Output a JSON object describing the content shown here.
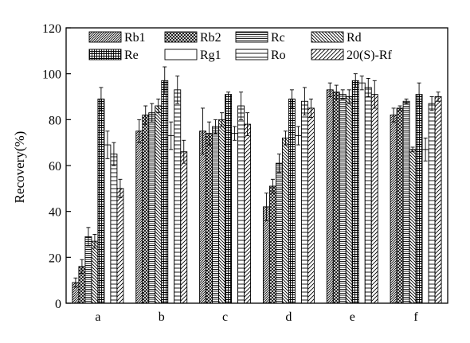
{
  "chart_data": {
    "type": "bar",
    "title": "",
    "xlabel": "",
    "ylabel": "Recovery(%)",
    "ylim": [
      0,
      120
    ],
    "yticks": [
      0,
      20,
      40,
      60,
      80,
      100,
      120
    ],
    "grid": false,
    "legend_position": "top",
    "categories": [
      "a",
      "b",
      "c",
      "d",
      "e",
      "f"
    ],
    "series": [
      {
        "name": "Rb1",
        "pattern": "diag-right-dense",
        "values": [
          9,
          75,
          75,
          42,
          93,
          82
        ],
        "errors": [
          2,
          5,
          10,
          6,
          3,
          3
        ]
      },
      {
        "name": "Rb2",
        "pattern": "crosshatch",
        "values": [
          16,
          82,
          74,
          51,
          92,
          85
        ],
        "errors": [
          3,
          4,
          5,
          3,
          3,
          1
        ]
      },
      {
        "name": "Rc",
        "pattern": "horizontal-dense",
        "values": [
          29,
          83,
          77,
          61,
          91,
          88
        ],
        "errors": [
          4,
          4,
          3,
          4,
          2,
          1
        ]
      },
      {
        "name": "Rd",
        "pattern": "diag-left",
        "values": [
          27,
          86,
          80,
          72,
          90,
          67
        ],
        "errors": [
          3,
          3,
          3,
          3,
          3,
          1
        ]
      },
      {
        "name": "Re",
        "pattern": "grid",
        "values": [
          89,
          97,
          91,
          89,
          97,
          91
        ],
        "errors": [
          5,
          6,
          1,
          4,
          3,
          5
        ]
      },
      {
        "name": "Rg1",
        "pattern": "empty",
        "values": [
          69,
          73,
          74,
          73,
          96,
          67
        ],
        "errors": [
          6,
          6,
          3,
          4,
          3,
          5
        ]
      },
      {
        "name": "Ro",
        "pattern": "horizontal",
        "values": [
          65,
          93,
          86,
          88,
          94,
          87
        ],
        "errors": [
          5,
          6,
          6,
          6,
          4,
          3
        ]
      },
      {
        "name": "20(S)-Rf",
        "pattern": "diag-right",
        "values": [
          50,
          66,
          78,
          85,
          91,
          90
        ],
        "errors": [
          4,
          5,
          5,
          4,
          6,
          2
        ]
      }
    ]
  }
}
